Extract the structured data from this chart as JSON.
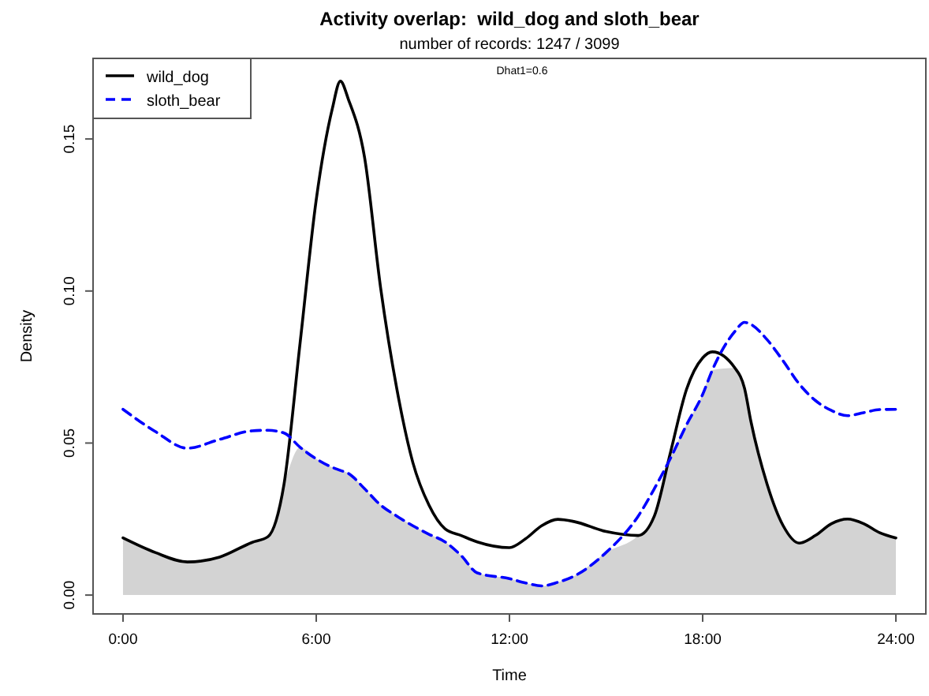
{
  "chart_data": {
    "type": "line",
    "title": "Activity overlap:  wild_dog and sloth_bear",
    "subtitle": "number of records: 1247 / 3099",
    "xlabel": "Time",
    "ylabel": "Density",
    "annotations": [
      "Dhat1=0.6"
    ],
    "x": [
      0,
      1,
      2,
      3,
      4,
      4.5,
      5,
      5.5,
      6,
      6.5,
      6.75,
      7,
      7.5,
      8,
      8.5,
      9,
      9.5,
      10,
      10.5,
      11,
      12,
      12.5,
      13,
      13.5,
      14,
      15,
      16,
      16.5,
      17,
      17.5,
      18,
      18.3,
      19,
      19.3,
      19.5,
      20,
      20.5,
      21,
      21.5,
      22,
      22.5,
      23,
      23.5,
      24
    ],
    "series": [
      {
        "type": "area",
        "color": "#d3d3d3",
        "values": [
          0.0188,
          0.014,
          0.0109,
          0.0125,
          0.0173,
          0.0192,
          0.0365,
          0.0486,
          0.0448,
          0.042,
          0.041,
          0.04,
          0.035,
          0.0296,
          0.026,
          0.0228,
          0.02,
          0.0175,
          0.013,
          0.0073,
          0.0054,
          0.004,
          0.003,
          0.0042,
          0.0062,
          0.014,
          0.0196,
          0.026,
          0.045,
          0.056,
          0.066,
          0.074,
          0.0747,
          0.068,
          0.057,
          0.0365,
          0.0228,
          0.0171,
          0.0196,
          0.0235,
          0.025,
          0.0235,
          0.0205,
          0.0188
        ]
      },
      {
        "name": "wild_dog",
        "color": "#000000",
        "line_style": "solid",
        "values": [
          0.0188,
          0.014,
          0.0109,
          0.0125,
          0.0173,
          0.0192,
          0.0365,
          0.083,
          0.13,
          0.16,
          0.169,
          0.163,
          0.144,
          0.101,
          0.068,
          0.0436,
          0.0296,
          0.0218,
          0.0196,
          0.0175,
          0.0156,
          0.0185,
          0.0228,
          0.0249,
          0.0242,
          0.0209,
          0.0196,
          0.026,
          0.0469,
          0.0677,
          0.078,
          0.08,
          0.0747,
          0.068,
          0.057,
          0.0365,
          0.0228,
          0.0171,
          0.0196,
          0.0235,
          0.025,
          0.0235,
          0.0205,
          0.0188
        ]
      },
      {
        "name": "sloth_bear",
        "color": "#0000ff",
        "line_style": "dashed",
        "values": [
          0.0611,
          0.0538,
          0.0483,
          0.0512,
          0.054,
          0.0542,
          0.0533,
          0.0486,
          0.0448,
          0.042,
          0.041,
          0.04,
          0.035,
          0.0296,
          0.026,
          0.0228,
          0.02,
          0.0175,
          0.013,
          0.0073,
          0.0054,
          0.004,
          0.003,
          0.0042,
          0.0062,
          0.014,
          0.026,
          0.035,
          0.045,
          0.056,
          0.066,
          0.074,
          0.0867,
          0.0897,
          0.089,
          0.084,
          0.077,
          0.0694,
          0.064,
          0.0607,
          0.059,
          0.06,
          0.061,
          0.0611
        ]
      }
    ],
    "xlim": [
      -0.93,
      24.93
    ],
    "ylim": [
      -0.0062,
      0.1765
    ],
    "xticks": [
      {
        "value": 0,
        "label": "0:00"
      },
      {
        "value": 6,
        "label": "6:00"
      },
      {
        "value": 12,
        "label": "12:00"
      },
      {
        "value": 18,
        "label": "18:00"
      },
      {
        "value": 24,
        "label": "24:00"
      }
    ],
    "yticks": [
      {
        "value": 0,
        "label": "0.00"
      },
      {
        "value": 0.05,
        "label": "0.05"
      },
      {
        "value": 0.1,
        "label": "0.10"
      },
      {
        "value": 0.15,
        "label": "0.15"
      }
    ],
    "grid": false,
    "legend": "top left"
  }
}
